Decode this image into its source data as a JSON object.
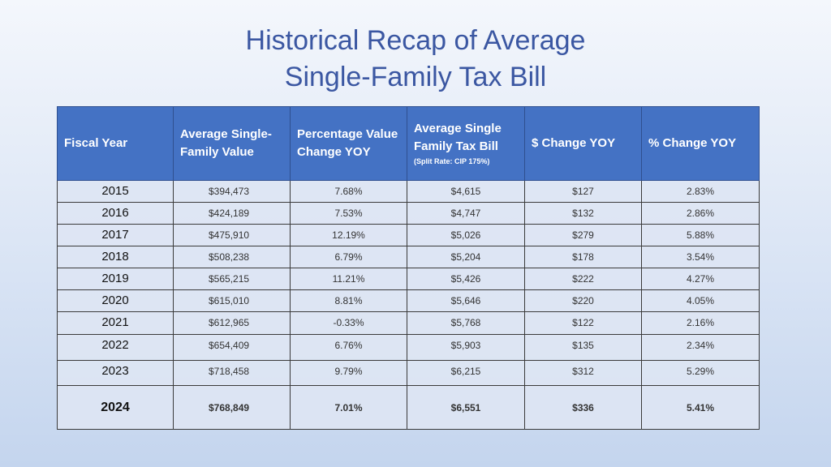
{
  "title": {
    "line1": "Historical Recap of Average",
    "line2": "Single-Family Tax Bill"
  },
  "table": {
    "headers": [
      {
        "label": "Fiscal Year",
        "sub": ""
      },
      {
        "label": "Average Single-Family Value",
        "sub": ""
      },
      {
        "label": "Percentage Value Change YOY",
        "sub": ""
      },
      {
        "label": "Average Single Family Tax Bill",
        "sub": "(Split Rate: CIP 175%)"
      },
      {
        "label": "$ Change YOY",
        "sub": ""
      },
      {
        "label": "% Change YOY",
        "sub": ""
      }
    ],
    "rows": [
      [
        "2015",
        "$394,473",
        "7.68%",
        "$4,615",
        "$127",
        "2.83%"
      ],
      [
        "2016",
        "$424,189",
        "7.53%",
        "$4,747",
        "$132",
        "2.86%"
      ],
      [
        "2017",
        "$475,910",
        "12.19%",
        "$5,026",
        "$279",
        "5.88%"
      ],
      [
        "2018",
        "$508,238",
        "6.79%",
        "$5,204",
        "$178",
        "3.54%"
      ],
      [
        "2019",
        "$565,215",
        "11.21%",
        "$5,426",
        "$222",
        "4.27%"
      ],
      [
        "2020",
        "$615,010",
        "8.81%",
        "$5,646",
        "$220",
        "4.05%"
      ],
      [
        "2021",
        "$612,965",
        "-0.33%",
        "$5,768",
        "$122",
        "2.16%"
      ],
      [
        "2022",
        "$654,409",
        "6.76%",
        "$5,903",
        "$135",
        "2.34%"
      ],
      [
        "2023",
        "$718,458",
        "9.79%",
        "$6,215",
        "$312",
        "5.29%"
      ],
      [
        "2024",
        "$768,849",
        "7.01%",
        "$6,551",
        "$336",
        "5.41%"
      ]
    ]
  },
  "colors": {
    "header_bg": "#4472c4",
    "title": "#3b57a2",
    "cell_bg": "#dde5f3"
  }
}
